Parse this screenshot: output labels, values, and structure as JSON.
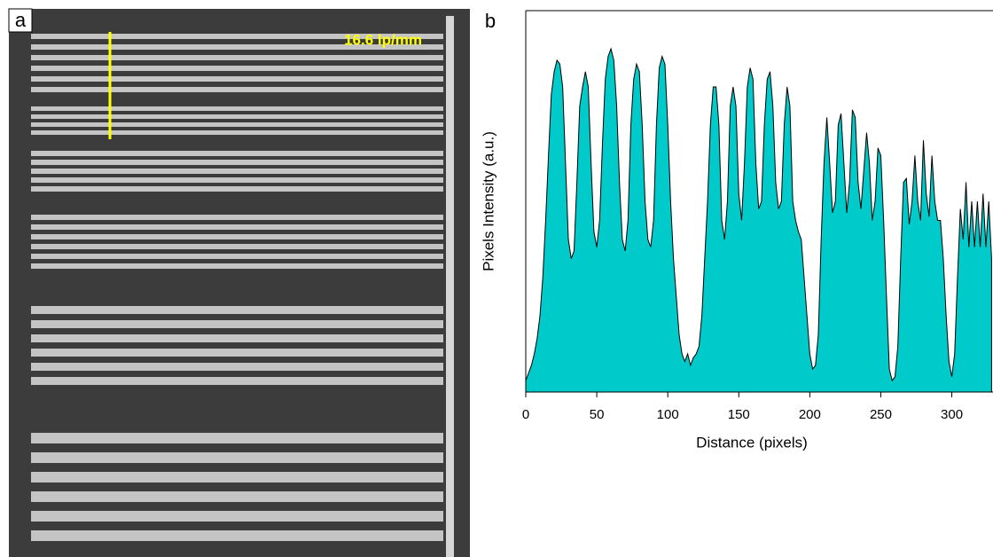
{
  "panel_a": {
    "label": "a",
    "annotation": "16.6 lp/mm"
  },
  "chart_data": {
    "type": "area",
    "panel_label": "b",
    "xlabel": "Distance (pixels)",
    "ylabel": "Pixels Intensity (a.u.)",
    "color": "#00caca",
    "xlim": [
      0,
      329
    ],
    "ylim": [
      0,
      1
    ],
    "xticks": [
      0,
      50,
      100,
      150,
      200,
      250,
      300
    ],
    "x": [
      0,
      2,
      4,
      6,
      8,
      10,
      12,
      14,
      16,
      18,
      20,
      22,
      24,
      26,
      28,
      30,
      32,
      34,
      36,
      38,
      40,
      42,
      44,
      46,
      48,
      50,
      52,
      54,
      56,
      58,
      60,
      62,
      64,
      66,
      68,
      70,
      72,
      74,
      76,
      78,
      80,
      82,
      84,
      86,
      88,
      90,
      92,
      94,
      96,
      98,
      100,
      102,
      104,
      106,
      108,
      110,
      112,
      114,
      116,
      118,
      120,
      122,
      124,
      126,
      128,
      130,
      132,
      134,
      136,
      138,
      140,
      142,
      144,
      146,
      148,
      150,
      152,
      154,
      156,
      158,
      160,
      162,
      164,
      166,
      168,
      170,
      172,
      174,
      176,
      178,
      180,
      182,
      184,
      186,
      188,
      190,
      192,
      194,
      196,
      198,
      200,
      202,
      204,
      206,
      208,
      210,
      212,
      214,
      216,
      218,
      220,
      222,
      224,
      226,
      228,
      230,
      232,
      234,
      236,
      238,
      240,
      242,
      244,
      246,
      248,
      250,
      252,
      254,
      256,
      258,
      260,
      262,
      264,
      266,
      268,
      270,
      272,
      274,
      276,
      278,
      280,
      282,
      284,
      286,
      288,
      290,
      292,
      294,
      296,
      298,
      300,
      302,
      304,
      306,
      308,
      310,
      312,
      314,
      316,
      318,
      320,
      322,
      324,
      326,
      328
    ],
    "values": [
      0.03,
      0.05,
      0.07,
      0.1,
      0.14,
      0.2,
      0.3,
      0.45,
      0.62,
      0.78,
      0.84,
      0.87,
      0.86,
      0.8,
      0.6,
      0.4,
      0.35,
      0.37,
      0.55,
      0.75,
      0.8,
      0.84,
      0.8,
      0.6,
      0.42,
      0.38,
      0.45,
      0.65,
      0.82,
      0.88,
      0.9,
      0.87,
      0.75,
      0.55,
      0.4,
      0.37,
      0.45,
      0.7,
      0.82,
      0.86,
      0.84,
      0.7,
      0.5,
      0.4,
      0.38,
      0.45,
      0.7,
      0.85,
      0.88,
      0.86,
      0.7,
      0.5,
      0.35,
      0.25,
      0.15,
      0.1,
      0.08,
      0.1,
      0.07,
      0.09,
      0.1,
      0.12,
      0.2,
      0.35,
      0.5,
      0.7,
      0.8,
      0.8,
      0.7,
      0.45,
      0.4,
      0.5,
      0.75,
      0.8,
      0.75,
      0.52,
      0.45,
      0.6,
      0.8,
      0.85,
      0.82,
      0.6,
      0.48,
      0.5,
      0.7,
      0.82,
      0.84,
      0.75,
      0.55,
      0.48,
      0.5,
      0.7,
      0.8,
      0.75,
      0.5,
      0.45,
      0.42,
      0.4,
      0.3,
      0.2,
      0.1,
      0.06,
      0.07,
      0.15,
      0.4,
      0.6,
      0.72,
      0.6,
      0.47,
      0.5,
      0.7,
      0.73,
      0.6,
      0.47,
      0.55,
      0.74,
      0.72,
      0.55,
      0.48,
      0.58,
      0.68,
      0.6,
      0.45,
      0.5,
      0.64,
      0.62,
      0.45,
      0.25,
      0.06,
      0.03,
      0.04,
      0.12,
      0.35,
      0.55,
      0.56,
      0.44,
      0.5,
      0.62,
      0.5,
      0.45,
      0.66,
      0.52,
      0.46,
      0.62,
      0.5,
      0.45,
      0.45,
      0.35,
      0.2,
      0.08,
      0.04,
      0.1,
      0.3,
      0.48,
      0.4,
      0.55,
      0.38,
      0.5,
      0.38,
      0.5,
      0.38,
      0.52,
      0.38,
      0.5,
      0.35
    ]
  }
}
